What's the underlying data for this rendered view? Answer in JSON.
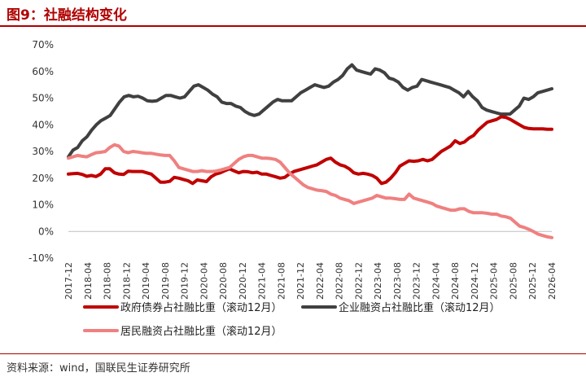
{
  "header": {
    "title": "图9：社融结构变化"
  },
  "footer": {
    "source": "资料来源：wind，国联民生证券研究所"
  },
  "chart_data": {
    "type": "line",
    "title": "图9：社融结构变化",
    "ylim": [
      -10,
      70
    ],
    "y_ticks": [
      -10,
      0,
      10,
      20,
      30,
      40,
      50,
      60,
      70
    ],
    "y_tick_labels": [
      "-10%",
      "0%",
      "10%",
      "20%",
      "30%",
      "40%",
      "50%",
      "60%",
      "70%"
    ],
    "x_tick_labels": [
      "2017-12",
      "2018-04",
      "2018-08",
      "2018-12",
      "2019-04",
      "2019-08",
      "2019-12",
      "2020-04",
      "2020-08",
      "2020-12",
      "2021-04",
      "2021-08",
      "2021-12",
      "2022-04",
      "2022-08",
      "2022-12",
      "2023-04",
      "2023-08",
      "2023-12",
      "2024-04",
      "2024-08",
      "2024-12",
      "2025-04",
      "2025-08",
      "2025-12",
      "2026-04"
    ],
    "grid": false,
    "legend_position": "bottom",
    "series": [
      {
        "name": "政府债券占社融比重（滚动12月）",
        "color": "#c00000",
        "values": [
          21.5,
          21.7,
          21.8,
          21.4,
          20.7,
          21.0,
          20.6,
          21.5,
          23.5,
          23.5,
          22.0,
          21.5,
          21.4,
          22.6,
          22.5,
          22.5,
          22.5,
          22.0,
          21.5,
          20.0,
          18.5,
          18.5,
          18.8,
          20.3,
          20.0,
          19.5,
          19.0,
          18.0,
          19.3,
          19.0,
          18.7,
          20.5,
          21.5,
          22.0,
          22.8,
          23.5,
          22.7,
          22.0,
          22.5,
          22.4,
          22.0,
          22.2,
          21.5,
          21.5,
          21.0,
          20.5,
          20.0,
          20.3,
          21.5,
          22.5,
          23.0,
          23.5,
          24.0,
          24.5,
          25.0,
          26.0,
          27.0,
          27.5,
          26.0,
          25.0,
          24.5,
          23.5,
          22.0,
          21.5,
          21.8,
          21.5,
          21.0,
          20.0,
          18.0,
          18.5,
          20.0,
          22.0,
          24.5,
          25.5,
          26.5,
          26.3,
          26.5,
          27.0,
          26.5,
          27.0,
          28.5,
          30.0,
          31.0,
          32.0,
          34.0,
          33.0,
          33.5,
          35.0,
          36.0,
          38.0,
          39.5,
          41.0,
          41.5,
          42.0,
          43.0,
          42.8,
          42.0,
          41.0,
          40.0,
          39.0,
          38.6,
          38.5,
          38.5,
          38.5,
          38.3,
          38.3
        ]
      },
      {
        "name": "企业融资占社融比重（滚动12月）",
        "color": "#404040",
        "values": [
          28.0,
          30.5,
          31.5,
          34.0,
          35.5,
          38.0,
          40.0,
          41.5,
          42.5,
          43.5,
          46.0,
          48.5,
          50.5,
          51.0,
          50.5,
          50.7,
          50.0,
          49.0,
          48.8,
          49.0,
          50.0,
          51.0,
          51.0,
          50.5,
          50.0,
          50.5,
          52.5,
          54.5,
          55.0,
          54.0,
          53.0,
          51.5,
          50.5,
          48.5,
          48.0,
          48.0,
          47.0,
          46.5,
          45.0,
          44.0,
          43.5,
          44.0,
          45.5,
          47.0,
          48.5,
          49.5,
          49.0,
          49.0,
          49.0,
          50.5,
          52.0,
          53.0,
          54.0,
          55.0,
          54.5,
          54.0,
          54.5,
          56.0,
          57.0,
          58.5,
          61.0,
          62.5,
          60.5,
          60.0,
          59.5,
          59.0,
          61.0,
          60.5,
          59.5,
          57.5,
          57.0,
          56.0,
          54.0,
          53.0,
          54.0,
          54.5,
          57.0,
          56.5,
          56.0,
          55.5,
          55.0,
          54.5,
          54.0,
          53.0,
          52.0,
          50.5,
          52.5,
          50.5,
          49.0,
          46.5,
          45.5,
          45.0,
          44.5,
          44.0,
          44.0,
          44.0,
          45.5,
          47.0,
          50.0,
          49.5,
          50.5,
          52.0,
          52.5,
          53.0,
          53.5
        ]
      },
      {
        "name": "居民融资占社融比重（滚动12月）",
        "color": "#f08080",
        "values": [
          27.5,
          28.0,
          28.5,
          28.2,
          28.0,
          28.8,
          29.5,
          29.7,
          30.0,
          31.5,
          32.5,
          32.0,
          30.0,
          29.5,
          30.0,
          29.8,
          29.5,
          29.3,
          29.3,
          29.0,
          28.7,
          28.5,
          28.5,
          26.5,
          24.0,
          23.5,
          23.0,
          22.5,
          22.5,
          22.8,
          22.5,
          22.5,
          22.6,
          23.0,
          23.5,
          24.0,
          25.5,
          27.0,
          28.0,
          28.5,
          28.5,
          28.0,
          27.5,
          27.5,
          27.3,
          27.0,
          26.0,
          24.0,
          22.0,
          20.5,
          19.0,
          17.5,
          16.5,
          16.0,
          15.5,
          15.3,
          15.0,
          14.0,
          13.5,
          12.5,
          12.0,
          11.5,
          10.5,
          11.0,
          11.5,
          12.0,
          12.5,
          13.5,
          13.0,
          12.5,
          12.5,
          12.3,
          12.0,
          12.0,
          14.0,
          12.5,
          12.0,
          11.5,
          11.0,
          10.5,
          9.5,
          9.0,
          8.5,
          8.0,
          8.0,
          8.5,
          8.5,
          7.5,
          7.0,
          7.0,
          7.0,
          6.8,
          6.5,
          6.5,
          5.8,
          5.5,
          5.0,
          3.5,
          2.0,
          1.5,
          0.8,
          0.0,
          -1.0,
          -1.5,
          -2.0,
          -2.3
        ]
      }
    ]
  }
}
